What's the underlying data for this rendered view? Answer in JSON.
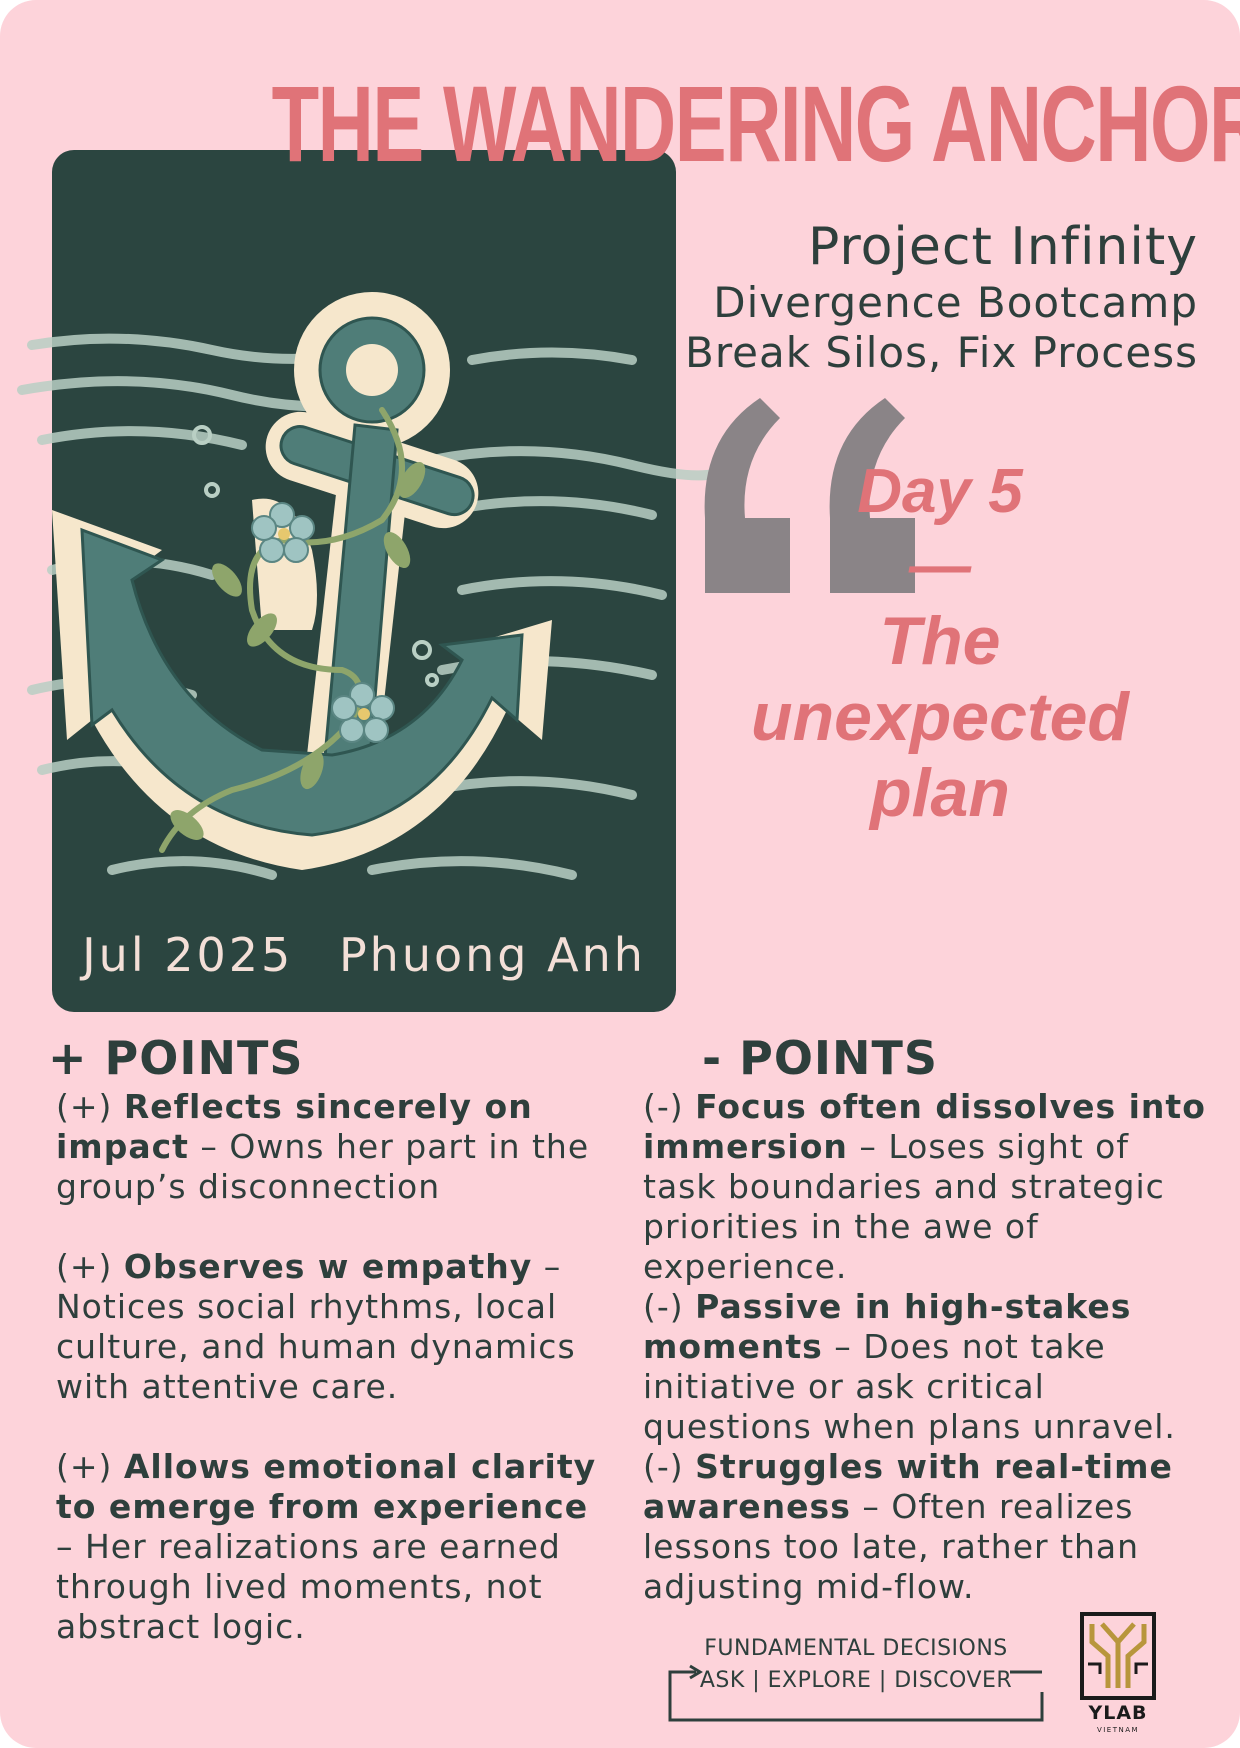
{
  "title": "THE WANDERING ANCHOR",
  "art": {
    "icon": "anchor-with-vine-illustration",
    "date": "Jul 2025",
    "author": "Phuong Anh"
  },
  "project": {
    "name": "Project Infinity",
    "line2": "Divergence Bootcamp",
    "line3": "Break Silos, Fix Process"
  },
  "quote": {
    "icon": "quote-mark-icon",
    "day": "Day 5",
    "dash": "—",
    "line1": "The",
    "line2": "unexpected",
    "line3": "plan"
  },
  "plus": {
    "heading": "+ POINTS",
    "items": [
      {
        "prefix": "(+) ",
        "bold": "Reflects sincerely on impact",
        "text": " – Owns her part in the group’s disconnection"
      },
      {
        "prefix": " (+) ",
        "bold": "Observes w  empathy",
        "text": " – Notices social rhythms, local culture, and human dynamics with attentive care."
      },
      {
        "prefix": " (+) ",
        "bold": "Allows emotional clarity to emerge from experience",
        "text": " – Her realizations are earned through lived moments, not abstract logic."
      }
    ]
  },
  "minus": {
    "heading": "- POINTS",
    "items": [
      {
        "prefix": "(-) ",
        "bold": "Focus often dissolves into immersion",
        "text": " – Loses sight of task boundaries and strategic priorities in the awe of experience."
      },
      {
        "prefix": " (-) ",
        "bold": "Passive in high-stakes moments",
        "text": " – Does not take initiative or ask critical questions when plans unravel."
      },
      {
        "prefix": " (-) ",
        "bold": "Struggles with real-time awareness",
        "text": " – Often realizes lessons too late, rather than adjusting mid-flow."
      }
    ]
  },
  "footer": {
    "line1": "FUNDAMENTAL DECISIONS",
    "line2": "ASK | EXPLORE | DISCOVER"
  },
  "logo": {
    "icon": "ylab-logo-icon",
    "name": "YLAB",
    "sub": "VIETNAM"
  },
  "colors": {
    "background": "#fdd3da",
    "accent": "#e07378",
    "panel": "#2b4540",
    "text": "#2e3f3c",
    "quote_mark": "#8a8487"
  }
}
